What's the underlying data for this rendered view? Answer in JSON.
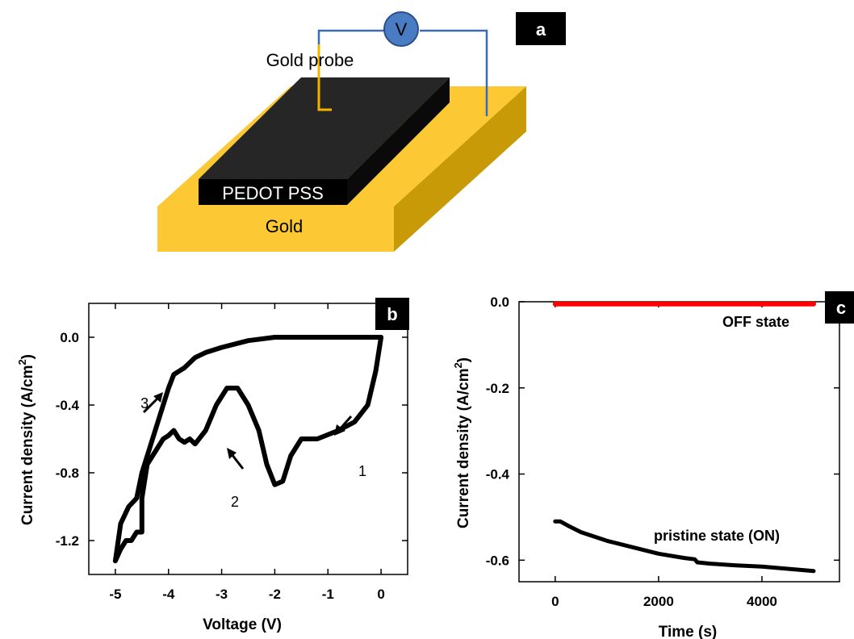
{
  "diagram": {
    "panel_label": "a",
    "voltmeter_symbol": "V",
    "probe_label": "Gold probe",
    "film_label": "PEDOT PSS",
    "substrate_label": "Gold",
    "colors": {
      "gold_top": "#fcc833",
      "gold_front": "#fcc833",
      "gold_side": "#c99a08",
      "film": "#262626",
      "wire": "#3d6bb3",
      "probe": "#f0b400",
      "voltmeter": "#4a7cc4"
    }
  },
  "chart_data": [
    {
      "type": "line",
      "panel_label": "b",
      "xlabel": "Voltage (V)",
      "ylabel": "Current density (A/cm",
      "ylabel_sup": "2",
      "ylabel_end": ")",
      "xlim": [
        -5.5,
        0.5
      ],
      "ylim": [
        -1.4,
        0.2
      ],
      "x_ticks": [
        -5,
        -4,
        -3,
        -2,
        -1,
        0
      ],
      "x_tick_labels": [
        "-5",
        "-4",
        "-3",
        "-2",
        "-1",
        "0"
      ],
      "y_ticks": [
        0.0,
        -0.4,
        -0.8,
        -1.2
      ],
      "y_tick_labels": [
        "0.0",
        "-0.4",
        "-0.8",
        "-1.2"
      ],
      "series": [
        {
          "color": "#000000",
          "x": [
            0.0,
            -0.1,
            -0.25,
            -0.5,
            -0.8,
            -1.2,
            -1.5,
            -1.7,
            -1.85,
            -2.0,
            -2.15,
            -2.3,
            -2.5,
            -2.7,
            -2.9,
            -3.1,
            -3.3,
            -3.5,
            -3.6,
            -3.7,
            -3.8,
            -3.9,
            -4.0,
            -4.1,
            -4.2,
            -4.3,
            -4.4,
            -4.5,
            -4.5,
            -4.6,
            -4.7,
            -4.8,
            -4.9,
            -5.0,
            -4.9,
            -4.75,
            -4.6,
            -4.5,
            -4.4,
            -4.3,
            -4.2,
            -4.1,
            -4.0,
            -3.9,
            -3.8,
            -3.7,
            -3.6,
            -3.5,
            -3.3,
            -3.0,
            -2.5,
            -2.0,
            -1.5,
            -1.0,
            -0.5,
            0.0
          ],
          "y": [
            0.0,
            -0.2,
            -0.4,
            -0.5,
            -0.55,
            -0.6,
            -0.6,
            -0.7,
            -0.85,
            -0.87,
            -0.75,
            -0.55,
            -0.4,
            -0.3,
            -0.3,
            -0.4,
            -0.55,
            -0.63,
            -0.6,
            -0.62,
            -0.6,
            -0.55,
            -0.58,
            -0.6,
            -0.65,
            -0.7,
            -0.75,
            -0.95,
            -1.15,
            -1.15,
            -1.2,
            -1.2,
            -1.25,
            -1.32,
            -1.1,
            -1.0,
            -0.95,
            -0.8,
            -0.7,
            -0.6,
            -0.5,
            -0.4,
            -0.3,
            -0.22,
            -0.2,
            -0.18,
            -0.15,
            -0.12,
            -0.09,
            -0.06,
            -0.02,
            0.0,
            0.0,
            0.0,
            0.0,
            0.0
          ]
        }
      ],
      "annotations": [
        {
          "text": "1",
          "x": -0.35,
          "y": -0.82
        },
        {
          "text": "2",
          "x": -2.75,
          "y": -1.0
        },
        {
          "text": "3",
          "x": -4.45,
          "y": -0.42
        }
      ]
    },
    {
      "type": "line",
      "panel_label": "c",
      "xlabel": "Time (s)",
      "ylabel": "Current density (A/cm",
      "ylabel_sup": "2",
      "ylabel_end": ")",
      "xlim": [
        -700,
        5500
      ],
      "ylim": [
        -0.65,
        0.0
      ],
      "x_ticks": [
        0,
        2000,
        4000
      ],
      "x_tick_labels": [
        "0",
        "2000",
        "4000"
      ],
      "y_ticks": [
        0.0,
        -0.2,
        -0.4,
        -0.6
      ],
      "y_tick_labels": [
        "0.0",
        "-0.2",
        "-0.4",
        "-0.6"
      ],
      "series": [
        {
          "name": "OFF state",
          "color": "#ff0000",
          "x": [
            0,
            5000
          ],
          "y": [
            -0.005,
            -0.005
          ]
        },
        {
          "name": "pristine state (ON)",
          "color": "#000000",
          "x": [
            0,
            100,
            250,
            500,
            1000,
            1500,
            2000,
            2500,
            2700,
            2750,
            3000,
            3500,
            4000,
            4500,
            5000
          ],
          "y": [
            -0.51,
            -0.51,
            -0.52,
            -0.535,
            -0.555,
            -0.57,
            -0.585,
            -0.595,
            -0.598,
            -0.605,
            -0.608,
            -0.612,
            -0.615,
            -0.62,
            -0.625
          ]
        }
      ]
    }
  ]
}
